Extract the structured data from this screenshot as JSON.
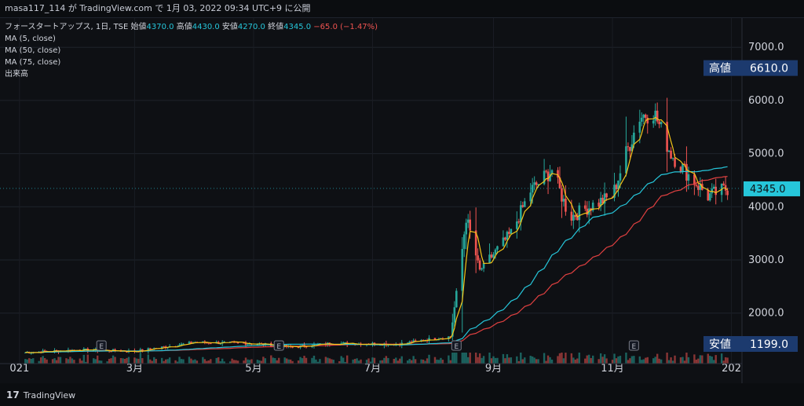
{
  "header": {
    "publish_line": "masa117_114 が TradingView.com で 1月 03, 2022 09:34 UTC+9 に公開"
  },
  "legend": {
    "symbol": "フォースタートアップス, 1日, TSE",
    "open_label": "始値",
    "open": "4370.0",
    "high_label": "高値",
    "high": "4430.0",
    "low_label": "安値",
    "low": "4270.0",
    "close_label": "終値",
    "close": "4345.0",
    "change": "−65.0 (−1.47%)",
    "ma5": "MA (5, close)",
    "ma50": "MA (50, close)",
    "ma75": "MA (75, close)",
    "volume": "出来高"
  },
  "footer": {
    "brand": "TradingView",
    "logo_icon": "tradingview-logo-icon"
  },
  "colors": {
    "up": "#26a69a",
    "down": "#ef5350",
    "ma5": "#f5c518",
    "ma50": "#26c6da",
    "ma75": "#e04040",
    "price_tag": "#26c6da",
    "range_tag": "#1c3a6e"
  },
  "chart_data": {
    "type": "candlestick",
    "price_axis": {
      "ticks": [
        2000,
        3000,
        4000,
        5000,
        6000,
        7000
      ],
      "tick_labels": [
        "2000.0",
        "3000.0",
        "4000.0",
        "5000.0",
        "6000.0",
        "7000.0"
      ],
      "range": [
        1050,
        7550
      ]
    },
    "x_axis": {
      "labels": [
        "021",
        "3月",
        "5月",
        "7月",
        "9月",
        "11月",
        "202"
      ]
    },
    "high_tag": {
      "label": "高値",
      "value": "6610.0"
    },
    "low_tag": {
      "label": "安値",
      "value": "1199.0"
    },
    "last_price": "4345.0",
    "events": [
      "E",
      "E",
      "E",
      "E"
    ],
    "keypoints": [
      {
        "date": "2021-01-04",
        "close": 1260
      },
      {
        "date": "2021-02-01",
        "close": 1310
      },
      {
        "date": "2021-03-01",
        "close": 1280
      },
      {
        "date": "2021-04-01",
        "close": 1450
      },
      {
        "date": "2021-05-01",
        "close": 1430
      },
      {
        "date": "2021-05-20",
        "close": 1360
      },
      {
        "date": "2021-06-10",
        "close": 1430
      },
      {
        "date": "2021-07-15",
        "close": 1420
      },
      {
        "date": "2021-08-01",
        "close": 1520
      },
      {
        "date": "2021-08-10",
        "close": 1560
      },
      {
        "date": "2021-08-16",
        "close": 3200
      },
      {
        "date": "2021-08-18",
        "close": 3800
      },
      {
        "date": "2021-08-25",
        "close": 2800
      },
      {
        "date": "2021-09-10",
        "close": 3500
      },
      {
        "date": "2021-09-20",
        "close": 4300
      },
      {
        "date": "2021-10-01",
        "close": 4700
      },
      {
        "date": "2021-10-10",
        "close": 3800
      },
      {
        "date": "2021-10-20",
        "close": 4000
      },
      {
        "date": "2021-11-01",
        "close": 4200
      },
      {
        "date": "2021-11-08",
        "close": 5000
      },
      {
        "date": "2021-11-15",
        "close": 5700
      },
      {
        "date": "2021-11-22",
        "close": 5800
      },
      {
        "date": "2021-12-01",
        "close": 5000
      },
      {
        "date": "2021-12-10",
        "close": 4600
      },
      {
        "date": "2021-12-20",
        "close": 4200
      },
      {
        "date": "2021-12-30",
        "close": 4345
      }
    ]
  }
}
